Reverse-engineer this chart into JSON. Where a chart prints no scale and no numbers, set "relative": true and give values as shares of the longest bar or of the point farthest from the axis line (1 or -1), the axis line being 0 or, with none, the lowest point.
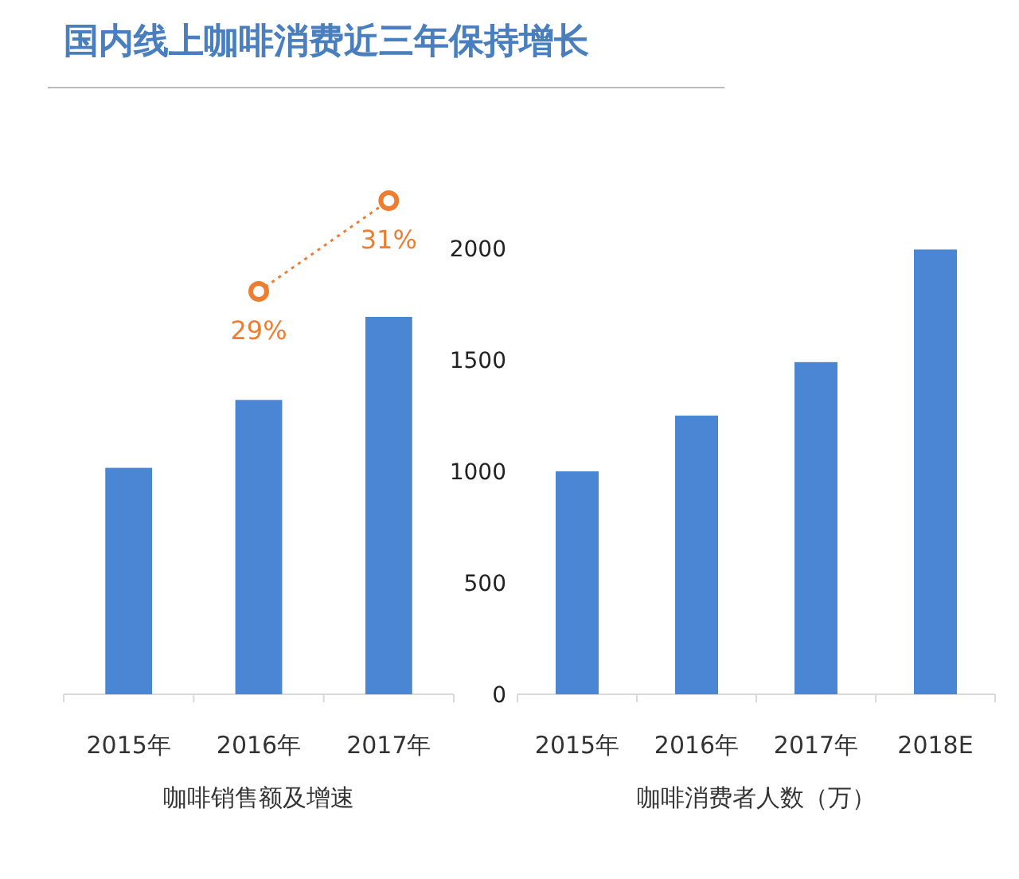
{
  "chart_data": [
    {
      "type": "bar",
      "relative": true,
      "annotations": [
        "国内线上咖啡消费近三年保持增长"
      ],
      "xlabel": "咖啡销售额及增速",
      "categories": [
        "2015年",
        "2016年",
        "2017年"
      ],
      "series": [
        {
          "color": "#4a86d4",
          "values": [
            0.6,
            0.78,
            1
          ]
        }
      ]
    },
    {
      "type": "line",
      "categories": [
        null,
        null,
        null
      ],
      "series": [
        {
          "color": "#ed7d31",
          "values": [
            null,
            29,
            31
          ],
          "value_labels": [
            null,
            "29%",
            "31%"
          ],
          "marker": "circle",
          "line_style": "dotted"
        }
      ]
    },
    {
      "type": "bar",
      "xlabel": "咖啡消费者人数（万）",
      "categories": [
        "2015年",
        "2016年",
        "2017年",
        "2018E"
      ],
      "series": [
        {
          "color": "#4a86d4",
          "values": [
            1000,
            1250,
            1490,
            1995
          ]
        }
      ],
      "ylim": [
        0,
        2000
      ],
      "yticks": [
        0,
        500,
        1000,
        1500,
        2000
      ],
      "grid": false
    }
  ]
}
